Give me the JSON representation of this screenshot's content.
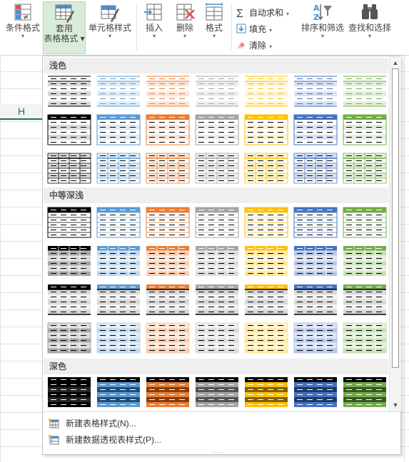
{
  "ribbon": {
    "conditional_format": "条件格式",
    "format_as_table_line1": "套用",
    "format_as_table_line2": "表格格式",
    "cell_styles": "单元格样式",
    "insert": "插入",
    "delete": "删除",
    "format": "格式",
    "autosum": "自动求和",
    "fill": "填充",
    "clear": "清除",
    "sort_filter": "排序和筛选",
    "find_select": "查找和选择"
  },
  "sheet": {
    "column_header": "H"
  },
  "gallery": {
    "sections": [
      "浅色",
      "中等深浅",
      "深色"
    ],
    "colors": [
      "#000000",
      "#5b9bd5",
      "#ed7d31",
      "#a5a5a5",
      "#ffc000",
      "#4472c4",
      "#70ad47"
    ],
    "light_tints": [
      "#d9d9d9",
      "#ddebf7",
      "#fce4d6",
      "#ededed",
      "#fff2cc",
      "#d9e1f2",
      "#e2efda"
    ],
    "mid_tints": [
      "#a6a6a6",
      "#bdd7ee",
      "#f8cbad",
      "#dbdbdb",
      "#ffe699",
      "#b4c6e7",
      "#c6e0b4"
    ],
    "dark_shades": [
      "#262626",
      "#1f4e78",
      "#843c0c",
      "#525252",
      "#7f6000",
      "#1f3864",
      "#375623"
    ]
  },
  "menu": {
    "new_table_style": "新建表格样式(N)...",
    "new_pivot_style": "新建数据透视表样式(P)..."
  },
  "scrollbar": {
    "up_icon": "▲",
    "down_icon": "▼"
  },
  "grip": "...."
}
